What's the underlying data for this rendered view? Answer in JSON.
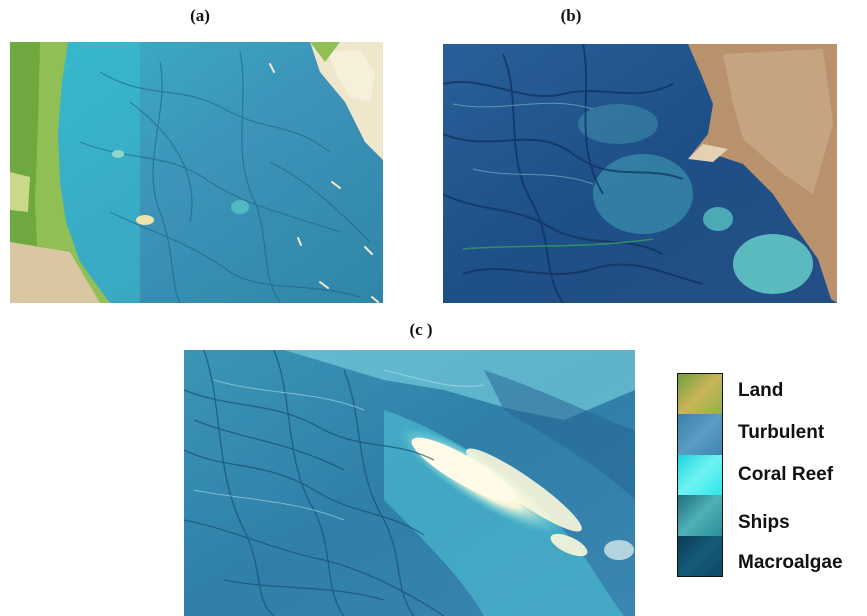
{
  "panels": {
    "a": {
      "label": "(a)"
    },
    "b": {
      "label": "(b)"
    },
    "c": {
      "label": "(c )"
    }
  },
  "legend": {
    "items": [
      {
        "label": "Land",
        "color": "#8fb34a"
      },
      {
        "label": "Turbulent",
        "color": "#3f86b0"
      },
      {
        "label": "Coral Reef",
        "color": "#2fe6ea"
      },
      {
        "label": "Ships",
        "color": "#2b8e97"
      },
      {
        "label": "Macroalgae",
        "color": "#0d4a66"
      }
    ]
  }
}
